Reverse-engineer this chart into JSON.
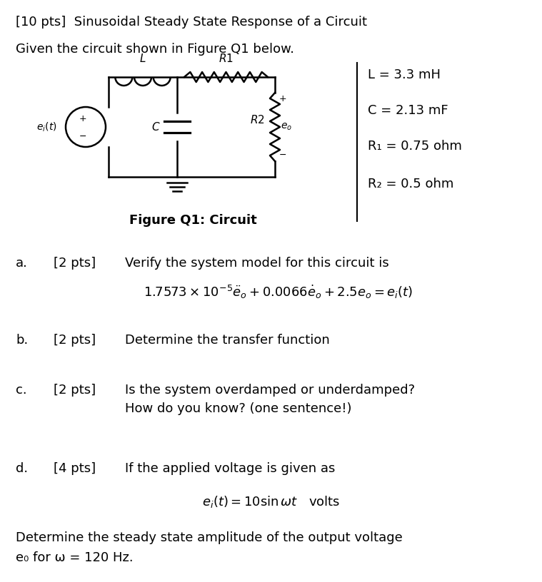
{
  "bg_color": "#ffffff",
  "title_line": "[10 pts]  Sinusoidal Steady State Response of a Circuit",
  "given_line": "Given the circuit shown in Figure Q1 below.",
  "fig_caption": "Figure Q1: Circuit",
  "params": [
    "L = 3.3 mH",
    "C = 2.13 mF",
    "R₁ = 0.75 ohm",
    "R₂ = 0.5 ohm"
  ],
  "part_a_label": "a.",
  "part_a_pts": "[2 pts]",
  "part_a_text": "Verify the system model for this circuit is",
  "part_b_label": "b.",
  "part_b_pts": "[2 pts]",
  "part_b_text": "Determine the transfer function",
  "part_c_label": "c.",
  "part_c_pts": "[2 pts]",
  "part_c_text1": "Is the system overdamped or underdamped?",
  "part_c_text2": "How do you know? (one sentence!)",
  "part_d_label": "d.",
  "part_d_pts": "[4 pts]",
  "part_d_text": "If the applied voltage is given as",
  "part_d_final1": "Determine the steady state amplitude of the output voltage",
  "part_d_final2": "e₀ for ω = 120 Hz."
}
